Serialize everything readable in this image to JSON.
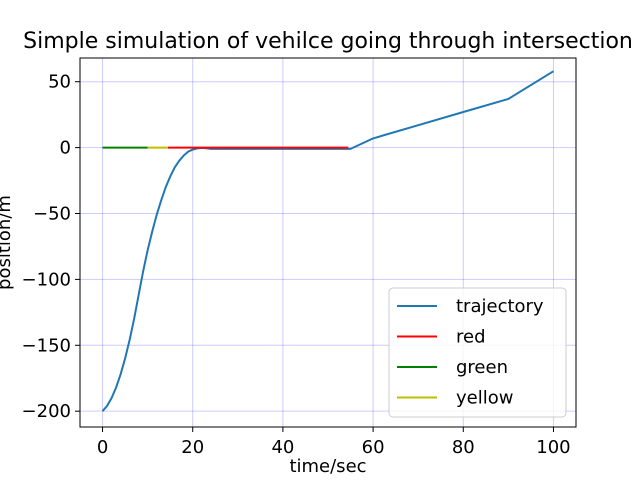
{
  "chart_data": {
    "type": "line",
    "title": "Simple simulation of vehilce going through intersection",
    "xlabel": "time/sec",
    "ylabel": "position/m",
    "xlim": [
      -5,
      105
    ],
    "ylim": [
      -212,
      68
    ],
    "xticks": [
      0,
      20,
      40,
      60,
      80,
      100
    ],
    "yticks": [
      -200,
      -150,
      -100,
      -50,
      0,
      50
    ],
    "xtick_labels": [
      "0",
      "20",
      "40",
      "60",
      "80",
      "100"
    ],
    "ytick_labels": [
      "−200",
      "−150",
      "−100",
      "−50",
      "0",
      "50"
    ],
    "grid": true,
    "grid_color": "#0000ff",
    "legend_position": "lower-right",
    "series": [
      {
        "name": "trajectory",
        "color": "#1f77b4",
        "x": [
          0,
          1,
          2,
          3,
          4,
          5,
          6,
          7,
          8,
          9,
          10,
          11,
          12,
          13,
          14,
          15,
          16,
          17,
          18,
          19,
          20,
          21,
          22,
          23,
          24,
          25,
          30,
          40,
          50,
          54,
          55,
          60,
          70,
          80,
          90,
          100
        ],
        "y": [
          -200,
          -196,
          -190,
          -182,
          -172,
          -160,
          -146,
          -130,
          -112,
          -94,
          -78,
          -64,
          -51,
          -40,
          -30,
          -22,
          -15,
          -10,
          -6,
          -3,
          -1.5,
          -0.6,
          -0.2,
          -0.5,
          -1,
          -1,
          -1,
          -1,
          -1,
          -1,
          -1,
          7,
          17,
          27,
          37,
          58
        ]
      },
      {
        "name": "red",
        "color": "#ff0000",
        "x": [
          14.5,
          54.5
        ],
        "y": [
          0,
          0
        ]
      },
      {
        "name": "green",
        "color": "#008000",
        "x": [
          0,
          10
        ],
        "y": [
          0,
          0
        ]
      },
      {
        "name": "yellow",
        "color": "#bfbf00",
        "x": [
          10,
          14.5
        ],
        "y": [
          0,
          0
        ]
      }
    ]
  }
}
